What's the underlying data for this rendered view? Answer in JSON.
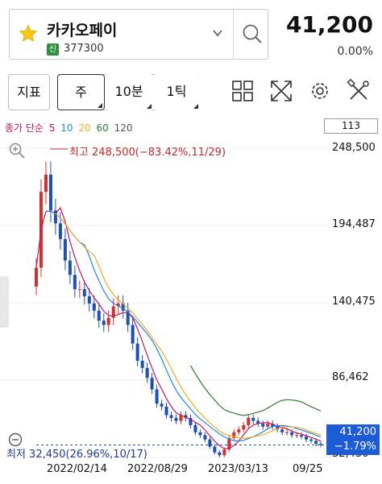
{
  "header": {
    "stock_name": "카카오페이",
    "market_badge": "신",
    "stock_code": "377300",
    "price": "41,200",
    "change_pct": "0.00%",
    "icons": [
      "star-icon",
      "chevron-down-icon",
      "search-icon"
    ]
  },
  "toolbar": {
    "indicator_label": "지표",
    "period_label": "주",
    "minute_label": "10분",
    "tick_label": "1틱",
    "icons": [
      "grid-icon",
      "expand-icon",
      "gear-icon",
      "tools-icon"
    ]
  },
  "legend": {
    "title": "종가 단순",
    "ma": [
      {
        "label": "5",
        "color": "#c2185b"
      },
      {
        "label": "10",
        "color": "#1e88e5"
      },
      {
        "label": "20",
        "color": "#f9a825"
      },
      {
        "label": "60",
        "color": "#2e7d32"
      },
      {
        "label": "120",
        "color": "#555555"
      }
    ],
    "volume_value": "113"
  },
  "chart": {
    "y_labels": [
      "248,500",
      "194,487",
      "140,475",
      "86,462",
      "32,450"
    ],
    "x_labels": [
      "2022/02/14",
      "2022/08/29",
      "2023/03/13",
      "09/25"
    ],
    "high_note": "최고 248,500(−83.42%,11/29)",
    "low_note": "최저 32,450(26.96%,10/17)",
    "current_price": "41,200",
    "current_change": "−1.79%",
    "colors": {
      "up": "#d32f2f",
      "down": "#1e4fb5",
      "tag": "#1e5bd6"
    }
  },
  "chart_data": {
    "type": "candlestick",
    "ylim": [
      32450,
      248500
    ],
    "x_ticks": [
      "2022/02/14",
      "2022/08/29",
      "2023/03/13",
      "09/25"
    ],
    "weekly_close_approx": [
      165000,
      218000,
      230000,
      205000,
      196000,
      185000,
      170000,
      160000,
      150000,
      150000,
      145000,
      140000,
      135000,
      128000,
      125000,
      130000,
      138000,
      140000,
      135000,
      125000,
      112000,
      100000,
      95000,
      88000,
      80000,
      70000,
      68000,
      62000,
      60000,
      58000,
      62000,
      60000,
      55000,
      50000,
      48000,
      45000,
      40000,
      36000,
      34000,
      38000,
      46000,
      50000,
      52000,
      55000,
      60000,
      58000,
      56000,
      54000,
      56000,
      54000,
      52000,
      50000,
      50000,
      48000,
      48000,
      47000,
      45000,
      44000,
      42000,
      41200
    ],
    "high": 248500,
    "low": 32450,
    "last": 41200
  }
}
